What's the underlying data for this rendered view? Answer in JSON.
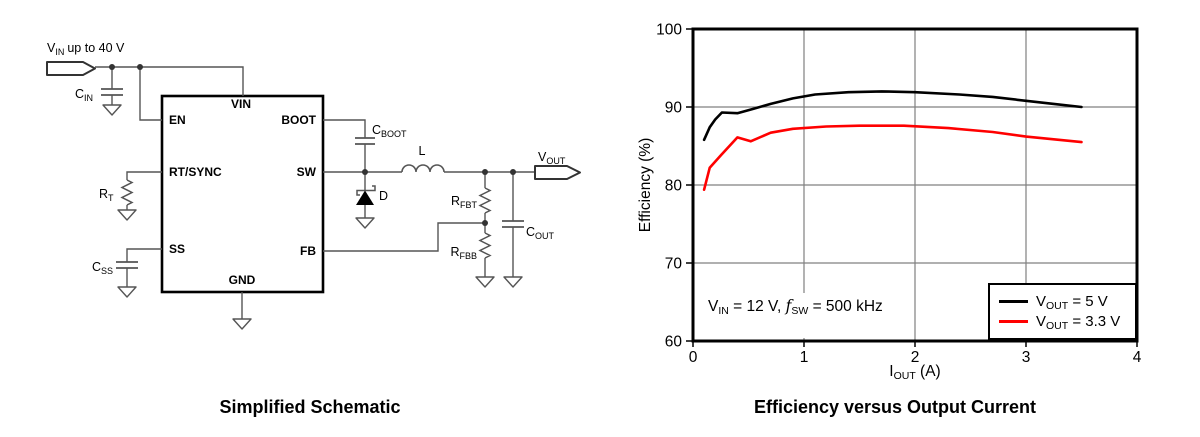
{
  "schematic": {
    "caption": "Simplified Schematic",
    "source_label": {
      "main": "V",
      "sub": "IN",
      "rest": "up to 40 V"
    },
    "components": {
      "cin": {
        "main": "C",
        "sub": "IN"
      },
      "rt": {
        "main": "R",
        "sub": "T"
      },
      "css": {
        "main": "C",
        "sub": "SS"
      },
      "cboot": {
        "main": "C",
        "sub": "BOOT"
      },
      "inductor": "L",
      "diode": "D",
      "rfbt": {
        "main": "R",
        "sub": "FBT"
      },
      "rfbb": {
        "main": "R",
        "sub": "FBB"
      },
      "cout": {
        "main": "C",
        "sub": "OUT"
      },
      "vout": {
        "main": "V",
        "sub": "OUT"
      }
    },
    "ic_pins": {
      "vin": "VIN",
      "en": "EN",
      "rtsync": "RT/SYNC",
      "ss": "SS",
      "boot": "BOOT",
      "sw": "SW",
      "fb": "FB",
      "gnd": "GND"
    }
  },
  "chart": {
    "caption": "Efficiency versus Output Current",
    "ylabel": "Efficiency (%)",
    "xlabel": {
      "main": "I",
      "sub": "OUT",
      "rest": " (A)"
    },
    "annotation": {
      "p1": "V",
      "s1": "IN",
      "p2": " = 12 V, ",
      "p3": "f",
      "s3": "SW",
      "p4": " = 500 kHz"
    },
    "legend": [
      {
        "color": "#000000",
        "main": "V",
        "sub": "OUT",
        "rest": " = 5 V"
      },
      {
        "color": "#ff0000",
        "main": "V",
        "sub": "OUT",
        "rest": " = 3.3 V"
      }
    ]
  },
  "chart_data": {
    "type": "line",
    "title": "Efficiency versus Output Current",
    "xlabel": "IOUT (A)",
    "ylabel": "Efficiency (%)",
    "xlim": [
      0,
      4
    ],
    "ylim": [
      60,
      100
    ],
    "xticks": [
      0,
      1,
      2,
      3,
      4
    ],
    "yticks": [
      60,
      70,
      80,
      90,
      100
    ],
    "grid": true,
    "grid_color": "#808080",
    "annotation": "VIN = 12 V, fSW = 500 kHz",
    "legend_position": "lower right",
    "series": [
      {
        "name": "VOUT = 5 V",
        "color": "#000000",
        "points": [
          [
            0.1,
            85.8
          ],
          [
            0.15,
            87.4
          ],
          [
            0.2,
            88.4
          ],
          [
            0.26,
            89.3
          ],
          [
            0.4,
            89.2
          ],
          [
            0.55,
            89.8
          ],
          [
            0.7,
            90.4
          ],
          [
            0.9,
            91.1
          ],
          [
            1.1,
            91.6
          ],
          [
            1.4,
            91.9
          ],
          [
            1.7,
            92.0
          ],
          [
            2.0,
            91.9
          ],
          [
            2.4,
            91.6
          ],
          [
            2.7,
            91.3
          ],
          [
            3.0,
            90.8
          ],
          [
            3.25,
            90.4
          ],
          [
            3.5,
            90.0
          ]
        ]
      },
      {
        "name": "VOUT = 3.3 V",
        "color": "#ff0000",
        "points": [
          [
            0.1,
            79.4
          ],
          [
            0.15,
            82.2
          ],
          [
            0.25,
            83.8
          ],
          [
            0.4,
            86.1
          ],
          [
            0.52,
            85.6
          ],
          [
            0.7,
            86.7
          ],
          [
            0.9,
            87.2
          ],
          [
            1.2,
            87.5
          ],
          [
            1.5,
            87.6
          ],
          [
            1.9,
            87.6
          ],
          [
            2.3,
            87.3
          ],
          [
            2.7,
            86.8
          ],
          [
            3.0,
            86.2
          ],
          [
            3.5,
            85.5
          ]
        ]
      }
    ]
  }
}
